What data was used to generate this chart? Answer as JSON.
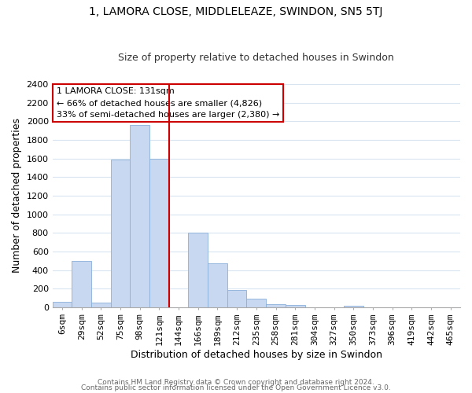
{
  "title": "1, LAMORA CLOSE, MIDDLELEAZE, SWINDON, SN5 5TJ",
  "subtitle": "Size of property relative to detached houses in Swindon",
  "xlabel": "Distribution of detached houses by size in Swindon",
  "ylabel": "Number of detached properties",
  "bar_color": "#c8d8f0",
  "bar_edge_color": "#8ab0d8",
  "categories": [
    "6sqm",
    "29sqm",
    "52sqm",
    "75sqm",
    "98sqm",
    "121sqm",
    "144sqm",
    "166sqm",
    "189sqm",
    "212sqm",
    "235sqm",
    "258sqm",
    "281sqm",
    "304sqm",
    "327sqm",
    "350sqm",
    "373sqm",
    "396sqm",
    "419sqm",
    "442sqm",
    "465sqm"
  ],
  "values": [
    55,
    500,
    50,
    1590,
    1960,
    1600,
    0,
    800,
    470,
    185,
    95,
    30,
    20,
    0,
    0,
    18,
    0,
    0,
    0,
    0,
    0
  ],
  "ylim": [
    0,
    2400
  ],
  "yticks": [
    0,
    200,
    400,
    600,
    800,
    1000,
    1200,
    1400,
    1600,
    1800,
    2000,
    2200,
    2400
  ],
  "vline_x": 6.0,
  "annotation_title": "1 LAMORA CLOSE: 131sqm",
  "annotation_line1": "← 66% of detached houses are smaller (4,826)",
  "annotation_line2": "33% of semi-detached houses are larger (2,380) →",
  "footer1": "Contains HM Land Registry data © Crown copyright and database right 2024.",
  "footer2": "Contains public sector information licensed under the Open Government Licence v3.0.",
  "grid_color": "#d8e4f0",
  "vline_color": "#cc0000",
  "annotation_border_color": "#cc0000",
  "bg_color": "#ffffff",
  "title_fontsize": 10,
  "subtitle_fontsize": 9,
  "xlabel_fontsize": 9,
  "ylabel_fontsize": 9,
  "tick_fontsize": 8,
  "annotation_fontsize": 8,
  "footer_fontsize": 6.5
}
